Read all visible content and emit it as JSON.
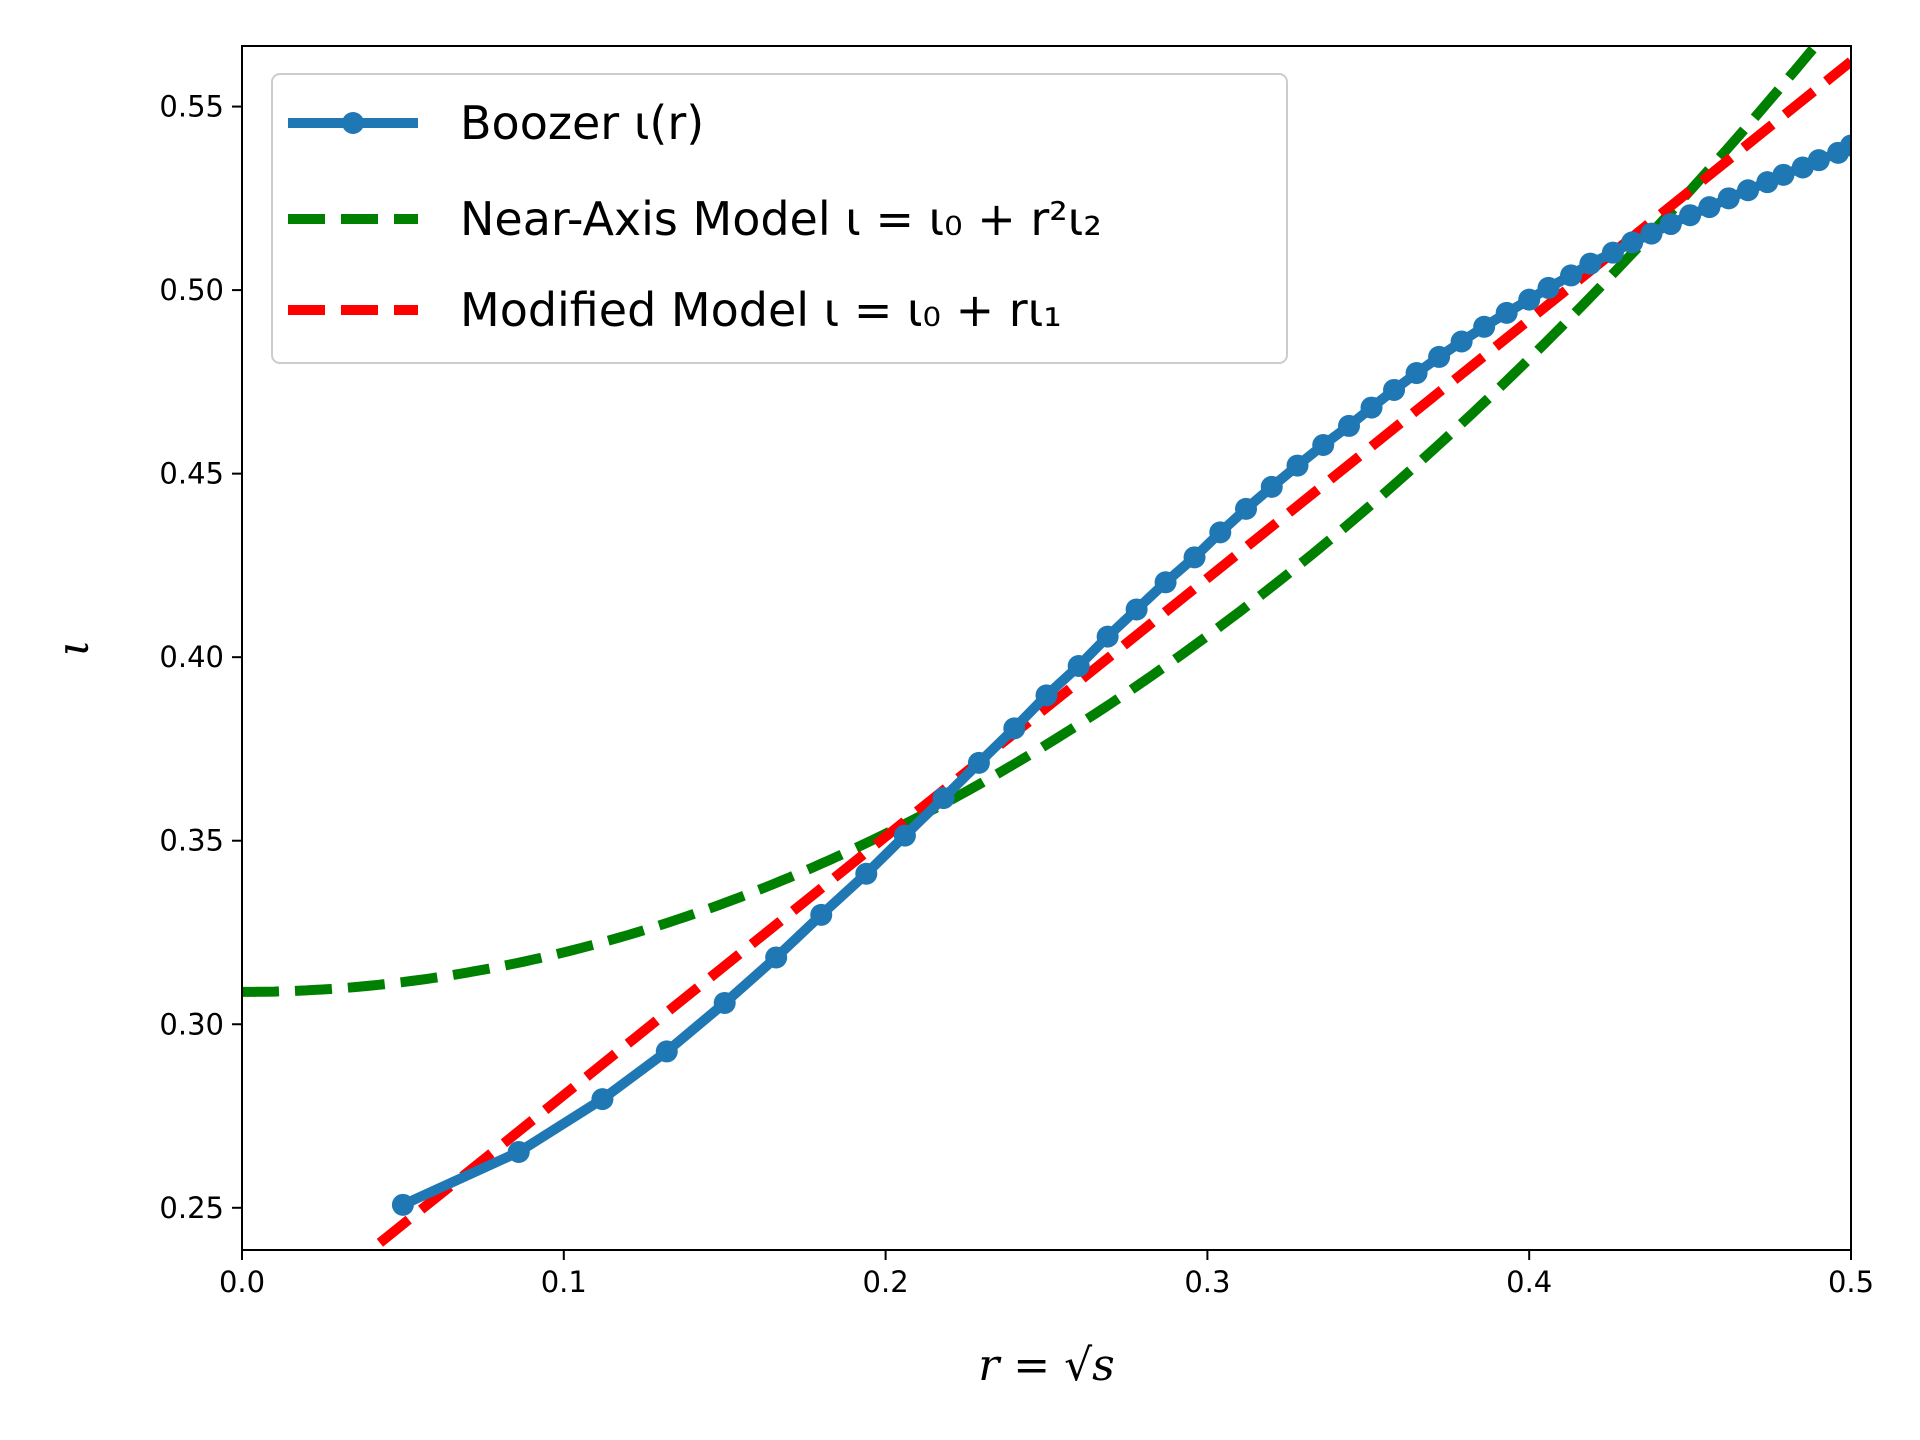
{
  "chart_data": {
    "type": "line",
    "xlabel": "r = √s",
    "ylabel": "ι",
    "xlim": [
      0.0,
      0.5
    ],
    "ylim": [
      0.2385,
      0.5665
    ],
    "x_ticks": [
      0.0,
      0.1,
      0.2,
      0.3,
      0.4,
      0.5
    ],
    "x_tick_labels": [
      "0.0",
      "0.1",
      "0.2",
      "0.3",
      "0.4",
      "0.5"
    ],
    "y_ticks": [
      0.25,
      0.3,
      0.35,
      0.4,
      0.45,
      0.5,
      0.55
    ],
    "y_tick_labels": [
      "0.25",
      "0.30",
      "0.35",
      "0.40",
      "0.45",
      "0.50",
      "0.55"
    ],
    "grid": false,
    "legend_position": "upper-left",
    "series": [
      {
        "name": "Boozer ι(r)",
        "style": "solid-markers",
        "color": "#1f77b4",
        "x": [
          0.05,
          0.086,
          0.112,
          0.132,
          0.15,
          0.166,
          0.18,
          0.194,
          0.206,
          0.218,
          0.229,
          0.24,
          0.25,
          0.26,
          0.269,
          0.278,
          0.287,
          0.296,
          0.304,
          0.312,
          0.32,
          0.328,
          0.336,
          0.344,
          0.351,
          0.358,
          0.365,
          0.372,
          0.379,
          0.386,
          0.393,
          0.4,
          0.406,
          0.413,
          0.419,
          0.426,
          0.432,
          0.438,
          0.444,
          0.45,
          0.456,
          0.462,
          0.468,
          0.474,
          0.479,
          0.485,
          0.49,
          0.496,
          0.5
        ],
        "y": [
          0.2508,
          0.2652,
          0.2796,
          0.2926,
          0.3058,
          0.3182,
          0.3298,
          0.341,
          0.3514,
          0.3616,
          0.3712,
          0.3806,
          0.3896,
          0.3976,
          0.4056,
          0.413,
          0.4204,
          0.4272,
          0.434,
          0.4404,
          0.4464,
          0.4522,
          0.4578,
          0.463,
          0.468,
          0.4728,
          0.4774,
          0.4818,
          0.486,
          0.49,
          0.4938,
          0.4974,
          0.5006,
          0.504,
          0.5072,
          0.5102,
          0.513,
          0.5154,
          0.518,
          0.5204,
          0.5226,
          0.525,
          0.5272,
          0.5294,
          0.5314,
          0.5334,
          0.5354,
          0.5374,
          0.5394
        ]
      },
      {
        "name": "Near-Axis Model ι = ι₀ + r²ι₂",
        "style": "dashed",
        "color": "#008000",
        "model": {
          "iota0": 0.3088,
          "iota2": 1.078
        }
      },
      {
        "name": "Modified Model ι = ι₀ + rι₁",
        "style": "dashed",
        "color": "#ff0000",
        "model": {
          "iota0": 0.2103,
          "iota1": 0.704
        }
      }
    ]
  }
}
